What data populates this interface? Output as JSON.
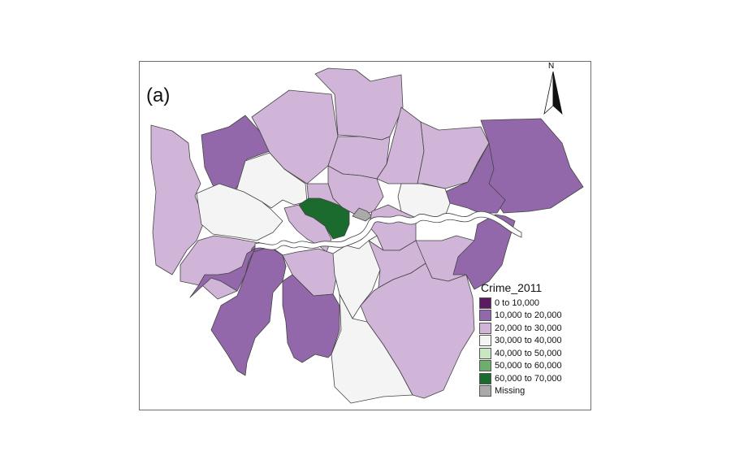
{
  "panel_label": "(a)",
  "north_label": "N",
  "legend": {
    "title": "Crime_2011",
    "classes": [
      {
        "label": "0 to 10,000",
        "color": "#5b1a63"
      },
      {
        "label": "10,000 to 20,000",
        "color": "#9268aa"
      },
      {
        "label": "20,000 to 30,000",
        "color": "#d1b5d8"
      },
      {
        "label": "30,000 to 40,000",
        "color": "#f4f4f4"
      },
      {
        "label": "40,000 to 50,000",
        "color": "#c7e8c2"
      },
      {
        "label": "50,000 to 60,000",
        "color": "#6dae6d"
      },
      {
        "label": "60,000 to 70,000",
        "color": "#1b6b2e"
      },
      {
        "label": "Missing",
        "color": "#aaaaaa"
      }
    ]
  },
  "colors": {
    "river": "#ffffff",
    "border": "#444444",
    "frame": "#6e6e6e"
  }
}
